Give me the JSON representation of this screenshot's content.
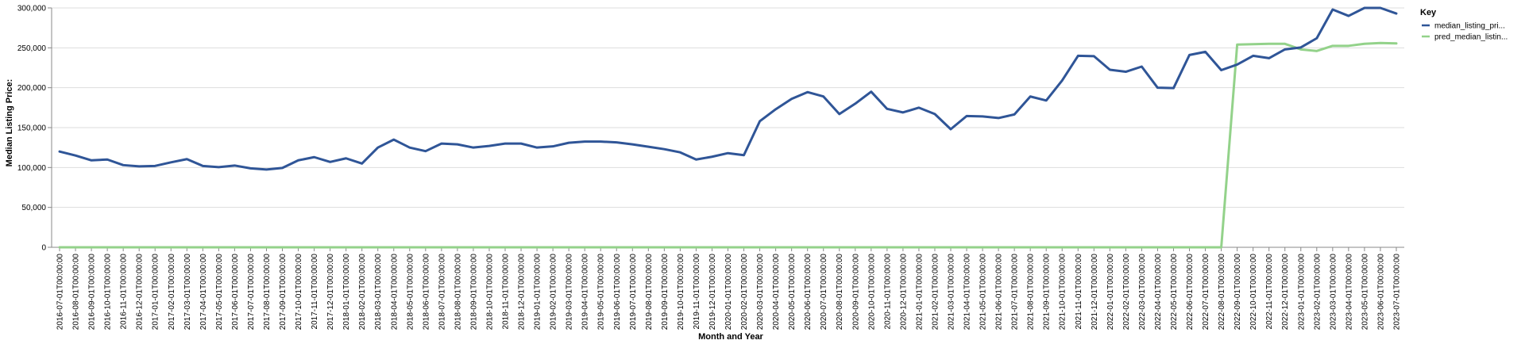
{
  "chart_data": {
    "type": "line",
    "xlabel": "Month and Year",
    "ylabel": "Median Listing Price:",
    "ylim": [
      0,
      300000
    ],
    "yticks": [
      "0",
      "50,000",
      "100,000",
      "150,000",
      "200,000",
      "250,000",
      "300,000"
    ],
    "grid": true,
    "legend": {
      "title": "Key",
      "placement": "top-right"
    },
    "x": [
      "2016-07-01T00:00:00",
      "2016-08-01T00:00:00",
      "2016-09-01T00:00:00",
      "2016-10-01T00:00:00",
      "2016-11-01T00:00:00",
      "2016-12-01T00:00:00",
      "2017-01-01T00:00:00",
      "2017-02-01T00:00:00",
      "2017-03-01T00:00:00",
      "2017-04-01T00:00:00",
      "2017-05-01T00:00:00",
      "2017-06-01T00:00:00",
      "2017-07-01T00:00:00",
      "2017-08-01T00:00:00",
      "2017-09-01T00:00:00",
      "2017-10-01T00:00:00",
      "2017-11-01T00:00:00",
      "2017-12-01T00:00:00",
      "2018-01-01T00:00:00",
      "2018-02-01T00:00:00",
      "2018-03-01T00:00:00",
      "2018-04-01T00:00:00",
      "2018-05-01T00:00:00",
      "2018-06-01T00:00:00",
      "2018-07-01T00:00:00",
      "2018-08-01T00:00:00",
      "2018-09-01T00:00:00",
      "2018-10-01T00:00:00",
      "2018-11-01T00:00:00",
      "2018-12-01T00:00:00",
      "2019-01-01T00:00:00",
      "2019-02-01T00:00:00",
      "2019-03-01T00:00:00",
      "2019-04-01T00:00:00",
      "2019-05-01T00:00:00",
      "2019-06-01T00:00:00",
      "2019-07-01T00:00:00",
      "2019-08-01T00:00:00",
      "2019-09-01T00:00:00",
      "2019-10-01T00:00:00",
      "2019-11-01T00:00:00",
      "2019-12-01T00:00:00",
      "2020-01-01T00:00:00",
      "2020-02-01T00:00:00",
      "2020-03-01T00:00:00",
      "2020-04-01T00:00:00",
      "2020-05-01T00:00:00",
      "2020-06-01T00:00:00",
      "2020-07-01T00:00:00",
      "2020-08-01T00:00:00",
      "2020-09-01T00:00:00",
      "2020-10-01T00:00:00",
      "2020-11-01T00:00:00",
      "2020-12-01T00:00:00",
      "2021-01-01T00:00:00",
      "2021-02-01T00:00:00",
      "2021-03-01T00:00:00",
      "2021-04-01T00:00:00",
      "2021-05-01T00:00:00",
      "2021-06-01T00:00:00",
      "2021-07-01T00:00:00",
      "2021-08-01T00:00:00",
      "2021-09-01T00:00:00",
      "2021-10-01T00:00:00",
      "2021-11-01T00:00:00",
      "2021-12-01T00:00:00",
      "2022-01-01T00:00:00",
      "2022-02-01T00:00:00",
      "2022-03-01T00:00:00",
      "2022-04-01T00:00:00",
      "2022-05-01T00:00:00",
      "2022-06-01T00:00:00",
      "2022-07-01T00:00:00",
      "2022-08-01T00:00:00",
      "2022-09-01T00:00:00",
      "2022-10-01T00:00:00",
      "2022-11-01T00:00:00",
      "2022-12-01T00:00:00",
      "2023-01-01T00:00:00",
      "2023-02-01T00:00:00",
      "2023-03-01T00:00:00",
      "2023-04-01T00:00:00",
      "2023-05-01T00:00:00",
      "2023-06-01T00:00:00",
      "2023-07-01T00:00:00"
    ],
    "series": [
      {
        "name": "median_listing_pri...",
        "color": "#2f5597",
        "values": [
          120000,
          115000,
          109000,
          110000,
          103000,
          101500,
          102000,
          106500,
          110500,
          102000,
          100500,
          102500,
          99000,
          97500,
          99500,
          109000,
          113000,
          107000,
          111500,
          105000,
          125000,
          135000,
          125000,
          120500,
          130000,
          129000,
          125000,
          127000,
          130000,
          130000,
          125000,
          126500,
          131000,
          132500,
          132500,
          131500,
          129000,
          126000,
          123000,
          119000,
          110000,
          113500,
          118000,
          115500,
          158000,
          173000,
          186000,
          194500,
          189000,
          167000,
          180000,
          195000,
          173500,
          169000,
          175000,
          167000,
          148000,
          164500,
          164000,
          162000,
          166500,
          189000,
          184000,
          209000,
          240000,
          239500,
          222500,
          220000,
          226500,
          200000,
          199500,
          241000,
          245000,
          222000,
          229000,
          240000,
          237000,
          248000,
          250500,
          262000,
          298000,
          290000,
          300000,
          300000,
          293000
        ]
      },
      {
        "name": "pred_median_listin...",
        "color": "#93d28a",
        "values": [
          0,
          0,
          0,
          0,
          0,
          0,
          0,
          0,
          0,
          0,
          0,
          0,
          0,
          0,
          0,
          0,
          0,
          0,
          0,
          0,
          0,
          0,
          0,
          0,
          0,
          0,
          0,
          0,
          0,
          0,
          0,
          0,
          0,
          0,
          0,
          0,
          0,
          0,
          0,
          0,
          0,
          0,
          0,
          0,
          0,
          0,
          0,
          0,
          0,
          0,
          0,
          0,
          0,
          0,
          0,
          0,
          0,
          0,
          0,
          0,
          0,
          0,
          0,
          0,
          0,
          0,
          0,
          0,
          0,
          0,
          0,
          0,
          0,
          0,
          254000,
          254500,
          255000,
          255000,
          248000,
          246000,
          252500,
          252500,
          255000,
          256000,
          255500
        ]
      }
    ]
  }
}
